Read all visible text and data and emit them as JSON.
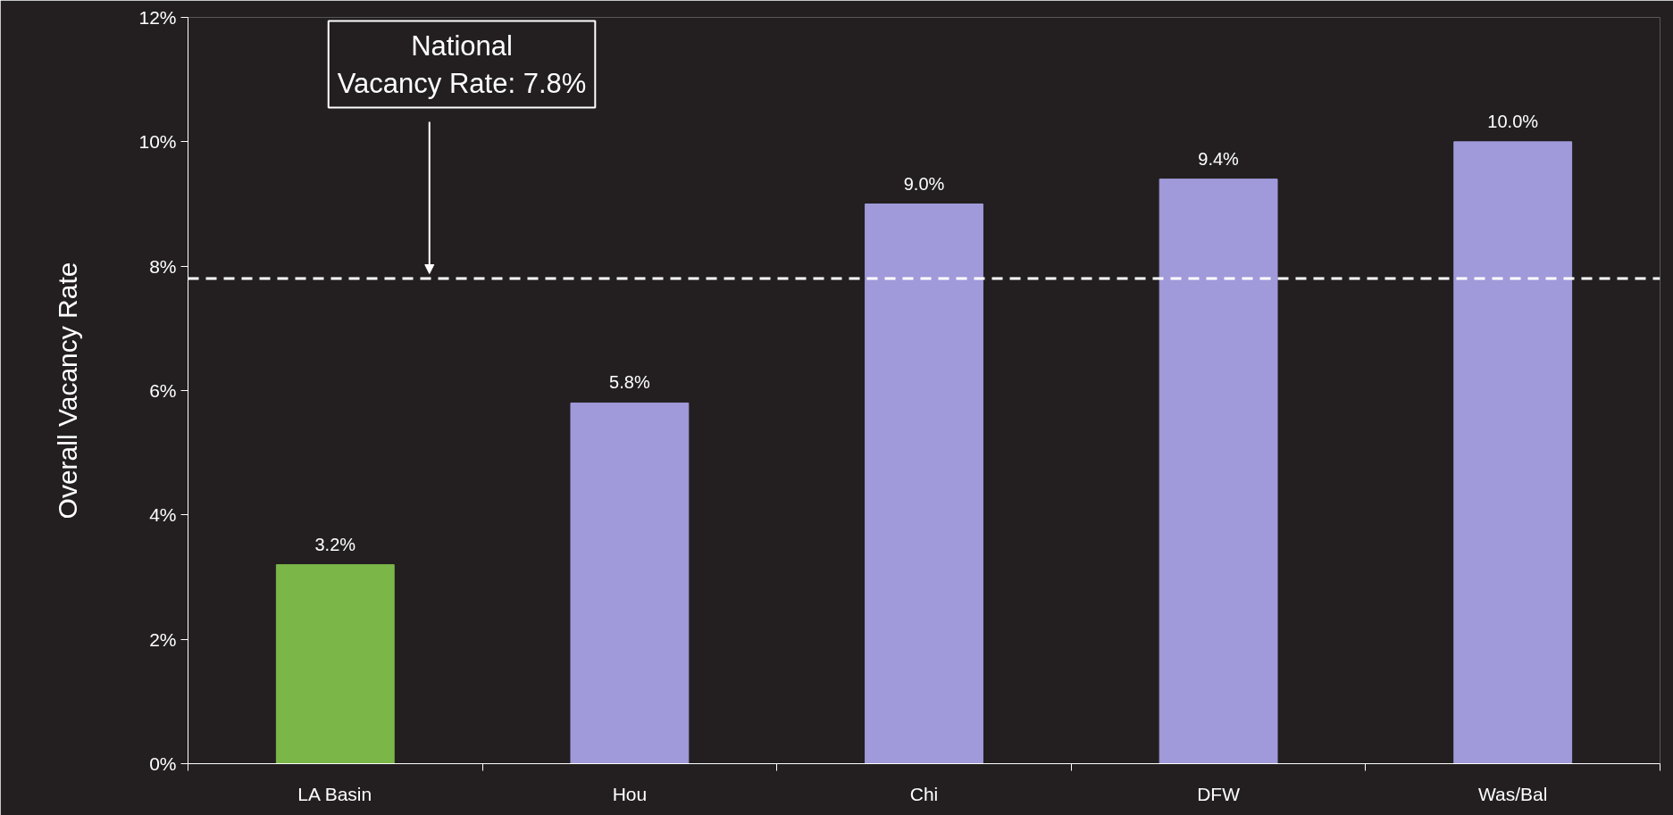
{
  "chart_data": {
    "type": "bar",
    "ylabel": "Overall Vacancy Rate",
    "categories": [
      "LA Basin",
      "Hou",
      "Chi",
      "DFW",
      "Was/Bal"
    ],
    "values": [
      3.2,
      5.8,
      9.0,
      9.4,
      10.0
    ],
    "colors": [
      "#7ab648",
      "#a09ada",
      "#a09ada",
      "#a09ada",
      "#a09ada"
    ],
    "value_labels": [
      "3.2%",
      "5.8%",
      "9.0%",
      "9.4%",
      "10.0%"
    ],
    "ylim": [
      0,
      12
    ],
    "yticks": [
      {
        "value": 0,
        "label": "0%"
      },
      {
        "value": 2,
        "label": "2%"
      },
      {
        "value": 4,
        "label": "4%"
      },
      {
        "value": 6,
        "label": "6%"
      },
      {
        "value": 8,
        "label": "8%"
      },
      {
        "value": 10,
        "label": "10%"
      },
      {
        "value": 12,
        "label": "12%"
      }
    ],
    "ref_lines": [
      {
        "axis": "y",
        "value": 7.8,
        "label": "National\nVacancy Rate: 7.8%",
        "color": "#ffffff",
        "line_style": "dashed"
      }
    ],
    "grid": false
  }
}
